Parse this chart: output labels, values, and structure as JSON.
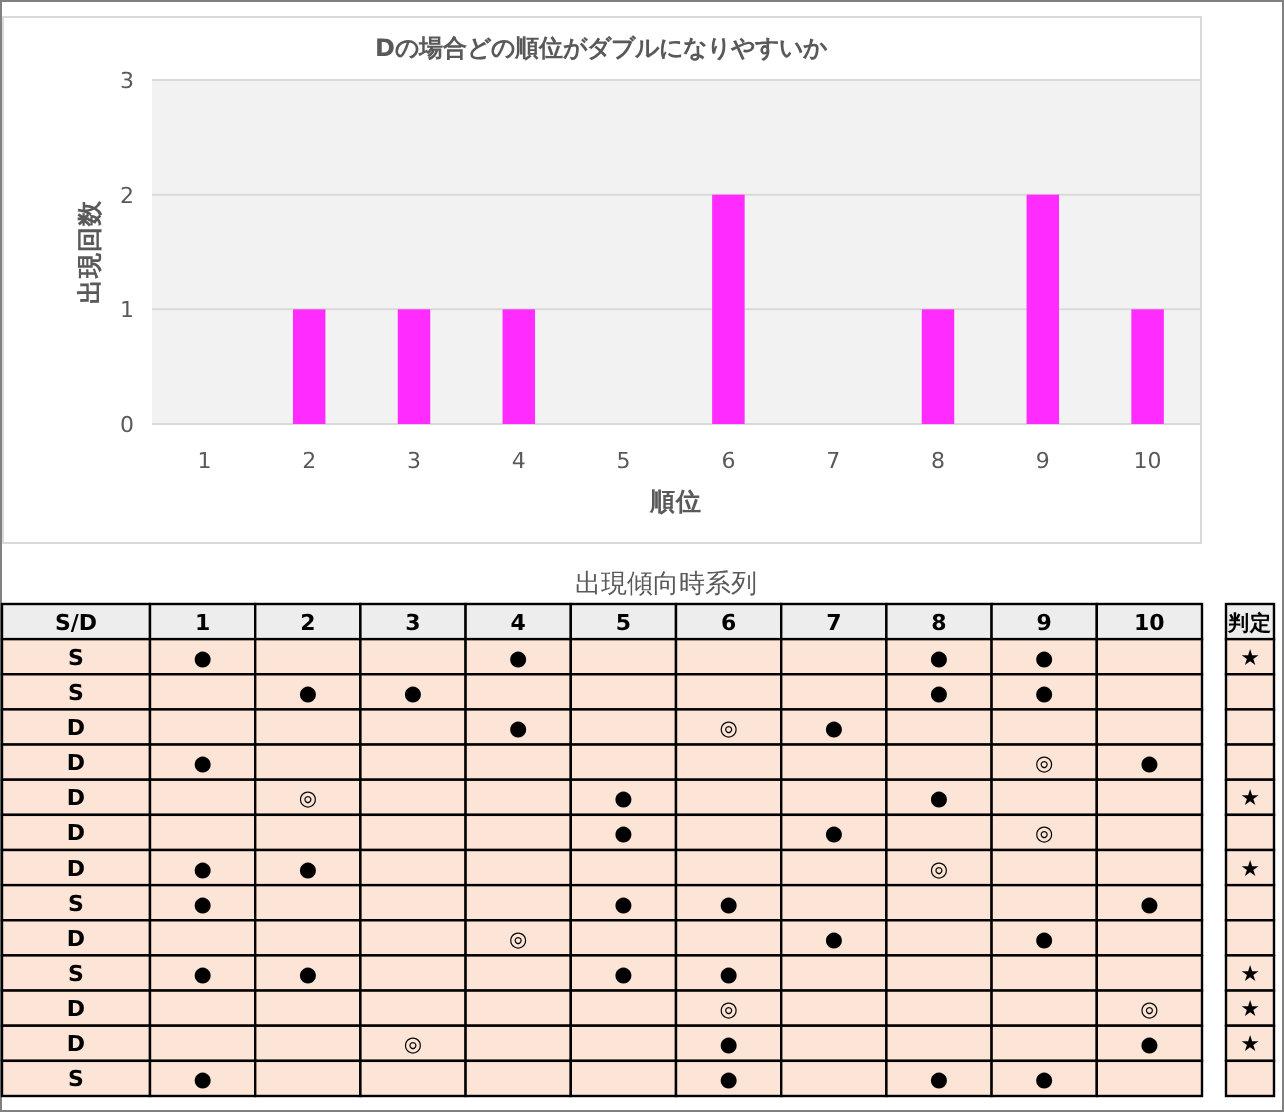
{
  "chart_data": [
    {
      "type": "bar",
      "title": "Dの場合どの順位がダブルになりやすいか",
      "xlabel": "順位",
      "ylabel": "出現回数",
      "categories": [
        "1",
        "2",
        "3",
        "4",
        "5",
        "6",
        "7",
        "8",
        "9",
        "10"
      ],
      "values": [
        0,
        1,
        1,
        1,
        0,
        2,
        0,
        1,
        2,
        1
      ],
      "color": "#ff2bff",
      "ylim": [
        0,
        3
      ],
      "yticks": [
        0,
        1,
        2,
        3
      ],
      "grid": "y"
    },
    {
      "type": "heatmap",
      "title": "出現傾向時系列",
      "ylabel": "S/D",
      "y2label": "判定",
      "color": "#fce4d6",
      "categories": [
        "1",
        "2",
        "3",
        "4",
        "5",
        "6",
        "7",
        "8",
        "9",
        "10"
      ],
      "y_categories": [
        "S",
        "S",
        "D",
        "D",
        "D",
        "D",
        "D",
        "S",
        "D",
        "S",
        "D",
        "D",
        "S"
      ],
      "y2_categories": [
        "★",
        null,
        null,
        null,
        "★",
        null,
        "★",
        null,
        null,
        "★",
        "★",
        "★",
        null
      ],
      "cells": [
        [
          null,
          null,
          null,
          null,
          null,
          null,
          null,
          null,
          null,
          null
        ],
        [
          null,
          null,
          null,
          null,
          null,
          null,
          null,
          null,
          null,
          null
        ],
        [
          null,
          null,
          null,
          null,
          null,
          null,
          null,
          null,
          null,
          null
        ],
        [
          null,
          null,
          null,
          null,
          null,
          null,
          null,
          null,
          null,
          null
        ],
        [
          null,
          null,
          null,
          null,
          null,
          null,
          null,
          null,
          null,
          null
        ],
        [
          null,
          null,
          null,
          null,
          null,
          null,
          null,
          null,
          null,
          null
        ],
        [
          null,
          null,
          null,
          null,
          null,
          null,
          null,
          null,
          null,
          null
        ],
        [
          null,
          null,
          null,
          null,
          null,
          null,
          null,
          null,
          null,
          null
        ],
        [
          null,
          null,
          null,
          null,
          null,
          null,
          null,
          null,
          null,
          null
        ],
        [
          null,
          null,
          null,
          null,
          null,
          null,
          null,
          null,
          null,
          null
        ],
        [
          null,
          null,
          null,
          null,
          null,
          null,
          null,
          null,
          null,
          null
        ],
        [
          null,
          null,
          null,
          null,
          null,
          null,
          null,
          null,
          null,
          null
        ],
        [
          null,
          null,
          null,
          null,
          null,
          null,
          null,
          null,
          null,
          null
        ]
      ],
      "cell_labels": [
        [
          "●",
          null,
          null,
          "●",
          null,
          null,
          null,
          "●",
          "●",
          null
        ],
        [
          null,
          "●",
          "●",
          null,
          null,
          null,
          null,
          "●",
          "●",
          null
        ],
        [
          null,
          null,
          null,
          "●",
          null,
          "◎",
          "●",
          null,
          null,
          null
        ],
        [
          "●",
          null,
          null,
          null,
          null,
          null,
          null,
          null,
          "◎",
          "●"
        ],
        [
          null,
          "◎",
          null,
          null,
          "●",
          null,
          null,
          "●",
          null,
          null
        ],
        [
          null,
          null,
          null,
          null,
          "●",
          null,
          "●",
          null,
          "◎",
          null
        ],
        [
          "●",
          "●",
          null,
          null,
          null,
          null,
          null,
          "◎",
          null,
          null
        ],
        [
          "●",
          null,
          null,
          null,
          "●",
          "●",
          null,
          null,
          null,
          "●"
        ],
        [
          null,
          null,
          null,
          "◎",
          null,
          null,
          "●",
          null,
          "●",
          null
        ],
        [
          "●",
          "●",
          null,
          null,
          "●",
          "●",
          null,
          null,
          null,
          null
        ],
        [
          null,
          null,
          null,
          null,
          null,
          "◎",
          null,
          null,
          null,
          "◎"
        ],
        [
          null,
          null,
          "◎",
          null,
          null,
          "●",
          null,
          null,
          null,
          "●"
        ],
        [
          "●",
          null,
          null,
          null,
          null,
          "●",
          null,
          "●",
          "●",
          null
        ]
      ]
    }
  ]
}
